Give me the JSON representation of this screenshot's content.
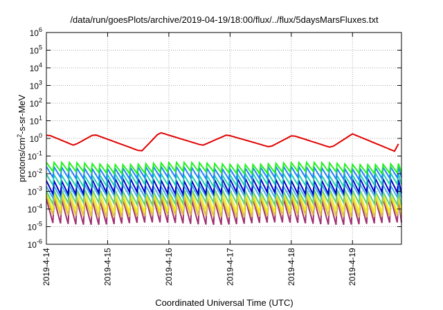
{
  "chart_data": {
    "type": "line",
    "title": "/data/run/goesPlots/archive/2019-04-19/18:00/flux/../flux/5daysMarsFluxes.txt",
    "xlabel": "Coordinated Universal Time (UTC)",
    "ylabel_parts": {
      "base": "protons/cm",
      "sup": "2",
      "rest": "-s-sr-MeV"
    },
    "x_range_days": [
      0,
      5.8
    ],
    "y_scale": "log",
    "ylim": [
      1e-06,
      1000000.0
    ],
    "y_ticks": [
      {
        "base": "10",
        "exp": "-6"
      },
      {
        "base": "10",
        "exp": "-5"
      },
      {
        "base": "10",
        "exp": "-4"
      },
      {
        "base": "10",
        "exp": "-3"
      },
      {
        "base": "10",
        "exp": "-2"
      },
      {
        "base": "10",
        "exp": "-1"
      },
      {
        "base": "10",
        "exp": "0"
      },
      {
        "base": "10",
        "exp": "1"
      },
      {
        "base": "10",
        "exp": "2"
      },
      {
        "base": "10",
        "exp": "3"
      },
      {
        "base": "10",
        "exp": "4"
      },
      {
        "base": "10",
        "exp": "5"
      },
      {
        "base": "10",
        "exp": "6"
      }
    ],
    "x_ticks": [
      "2019-4-14",
      "2019-4-15",
      "2019-4-16",
      "2019-4-17",
      "2019-4-18",
      "2019-4-19"
    ],
    "grid": true,
    "series": [
      {
        "color": "#e00000",
        "peaks": [
          [
            0.05,
            1.5
          ],
          [
            0.78,
            1.7
          ],
          [
            1.85,
            2.2
          ],
          [
            2.95,
            1.6
          ],
          [
            4.02,
            1.5
          ],
          [
            5.0,
            1.8
          ]
        ],
        "troughs": [
          [
            0.45,
            0.4
          ],
          [
            1.55,
            0.18
          ],
          [
            2.55,
            0.4
          ],
          [
            3.65,
            0.32
          ],
          [
            4.65,
            0.3
          ],
          [
            5.7,
            0.18
          ]
        ],
        "end": [
          5.8,
          1.3
        ]
      },
      {
        "color": "#20f020",
        "hi": 0.038,
        "lo": 0.012
      },
      {
        "color": "#2080ff",
        "hi": 0.022,
        "lo": 0.0055
      },
      {
        "color": "#20d0b0",
        "hi": 0.009,
        "lo": 0.0022
      },
      {
        "color": "#0000cc",
        "hi": 0.0045,
        "lo": 0.0008
      },
      {
        "color": "#40b0e0",
        "hi": 0.0022,
        "lo": 0.0005
      },
      {
        "color": "#60d080",
        "hi": 0.0011,
        "lo": 0.0002
      },
      {
        "color": "#f0f020",
        "hi": 0.0009,
        "lo": 7e-05
      },
      {
        "color": "#e0c040",
        "hi": 0.0005,
        "lo": 4e-05
      },
      {
        "color": "#a03070",
        "hi": 0.00035,
        "lo": 1.5e-05
      }
    ]
  }
}
